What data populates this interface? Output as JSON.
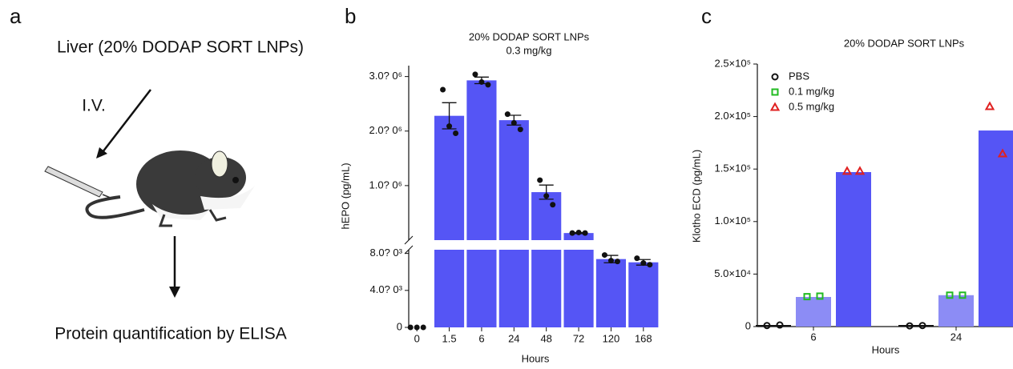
{
  "panel_a": {
    "label": "a",
    "title": "Liver (20% DODAP SORT LNPs)",
    "route": "I.V.",
    "readout": "Protein quantification by ELISA"
  },
  "chart_data": [
    {
      "type": "broken_bar",
      "panel_label": "b",
      "title": "20% DODAP SORT LNPs",
      "subtitle": "0.3 mg/kg",
      "x_label": "Hours",
      "y_label": "hEPO (pg/mL)",
      "color": "#5555f5",
      "categories": [
        "0",
        "1.5",
        "6",
        "24",
        "48",
        "72",
        "120",
        "168"
      ],
      "values": [
        0,
        2280000,
        2930000,
        2200000,
        880000,
        130000,
        7390,
        7040
      ],
      "errors": [
        0,
        240000,
        60000,
        90000,
        130000,
        10000,
        400,
        300
      ],
      "points": [
        [
          0,
          0,
          0
        ],
        [
          2760000,
          2090000,
          1960000
        ],
        [
          3040000,
          2900000,
          2850000
        ],
        [
          2310000,
          2150000,
          2030000
        ],
        [
          1100000,
          810000,
          650000
        ],
        [
          130000,
          140000,
          130000
        ],
        [
          7830,
          7220,
          7130
        ],
        [
          7480,
          6960,
          6780
        ]
      ],
      "segments": [
        {
          "ylim": [
            0,
            8400
          ],
          "yticks": [
            0,
            {
              "value": 4000,
              "label": "4.0? 0³"
            },
            {
              "value": 8000,
              "label": "8.0? 0³"
            }
          ]
        },
        {
          "ylim": [
            0,
            3200000
          ],
          "yticks": [
            {
              "value": 1000000,
              "label": "1.0? 0⁶"
            },
            {
              "value": 2000000,
              "label": "2.0? 0⁶"
            },
            {
              "value": 3000000,
              "label": "3.0? 0⁶"
            }
          ]
        }
      ]
    },
    {
      "type": "grouped_bar",
      "panel_label": "c",
      "title": "20% DODAP SORT LNPs",
      "x_label": "Hours",
      "y_label": "Klotho ECD (pg/mL)",
      "categories": [
        "6",
        "24"
      ],
      "ylim": [
        0,
        250000
      ],
      "yticks": [
        0,
        {
          "value": 50000,
          "label": "5.0×10⁴"
        },
        {
          "value": 100000,
          "label": "1.0×10⁵"
        },
        {
          "value": 150000,
          "label": "1.5×10⁵"
        },
        {
          "value": 200000,
          "label": "2.0×10⁵"
        },
        {
          "value": 250000,
          "label": "2.5×10⁵"
        }
      ],
      "series": [
        {
          "name": "PBS",
          "color": "#111111",
          "marker": "circle",
          "marker_color": "#111111",
          "values": [
            1200,
            900
          ],
          "points": [
            [
              1000,
              1500
            ],
            [
              700,
              1000
            ]
          ]
        },
        {
          "name": "0.1 mg/kg",
          "color": "#8c8cf5",
          "marker": "square",
          "marker_color": "#22bb22",
          "values": [
            28200,
            29900
          ],
          "points": [
            [
              28500,
              29000
            ],
            [
              29900,
              29900
            ]
          ]
        },
        {
          "name": "0.5 mg/kg",
          "color": "#5555f5",
          "marker": "triangle",
          "marker_color": "#e02020",
          "values": [
            147100,
            186700
          ],
          "points": [
            [
              148000,
              148000
            ],
            [
              209600,
              164600
            ]
          ]
        }
      ]
    }
  ]
}
